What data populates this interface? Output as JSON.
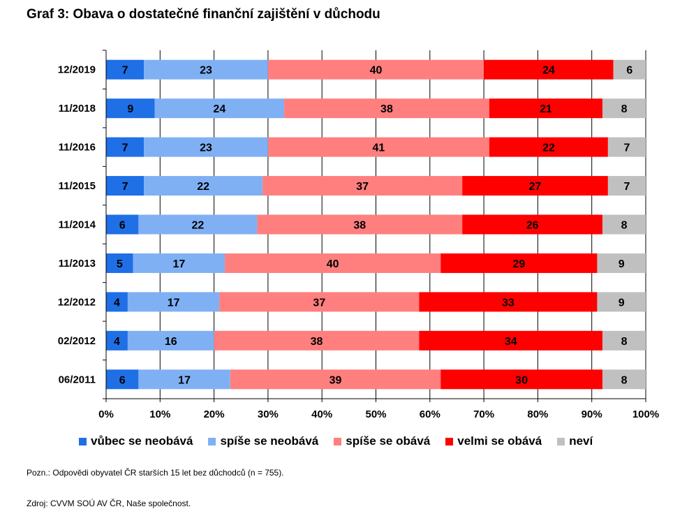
{
  "title": "Graf 3: Obava o dostatečné finanční zajištění v důchodu",
  "note": "Pozn.: Odpovědi obyvatel ČR starších 15 let bez důchodců (n = 755).",
  "source": "Zdroj: CVVM SOÚ AV ČR, Naše společnost.",
  "legend": [
    {
      "label": "vůbec se neobává",
      "color": "#1f6fe6"
    },
    {
      "label": "spíše se neobává",
      "color": "#80b0f4"
    },
    {
      "label": "spíše se obává",
      "color": "#ff7f7f"
    },
    {
      "label": "velmi se obává",
      "color": "#ff0000"
    },
    {
      "label": "neví",
      "color": "#c0c0c0"
    }
  ],
  "chart_data": {
    "type": "bar",
    "orientation": "horizontal",
    "stacked": true,
    "percent_stacked": true,
    "categories": [
      "12/2019",
      "11/2018",
      "11/2016",
      "11/2015",
      "11/2014",
      "11/2013",
      "12/2012",
      "02/2012",
      "06/2011"
    ],
    "series": [
      {
        "name": "vůbec se neobává",
        "color": "#1f6fe6",
        "values": [
          7,
          9,
          7,
          7,
          6,
          5,
          4,
          4,
          6
        ]
      },
      {
        "name": "spíše se neobává",
        "color": "#80b0f4",
        "values": [
          23,
          24,
          23,
          22,
          22,
          17,
          17,
          16,
          17
        ]
      },
      {
        "name": "spíše se obává",
        "color": "#ff7f7f",
        "values": [
          40,
          38,
          41,
          37,
          38,
          40,
          37,
          38,
          39
        ]
      },
      {
        "name": "velmi se obává",
        "color": "#ff0000",
        "values": [
          24,
          21,
          22,
          27,
          26,
          29,
          33,
          34,
          30
        ]
      },
      {
        "name": "neví",
        "color": "#c0c0c0",
        "values": [
          6,
          8,
          7,
          7,
          8,
          9,
          9,
          8,
          8
        ]
      }
    ],
    "x_ticks": [
      "0%",
      "10%",
      "20%",
      "30%",
      "40%",
      "50%",
      "60%",
      "70%",
      "80%",
      "90%",
      "100%"
    ],
    "xlim": [
      0,
      100
    ],
    "grid": true,
    "legend_position": "bottom",
    "data_labels": true
  }
}
